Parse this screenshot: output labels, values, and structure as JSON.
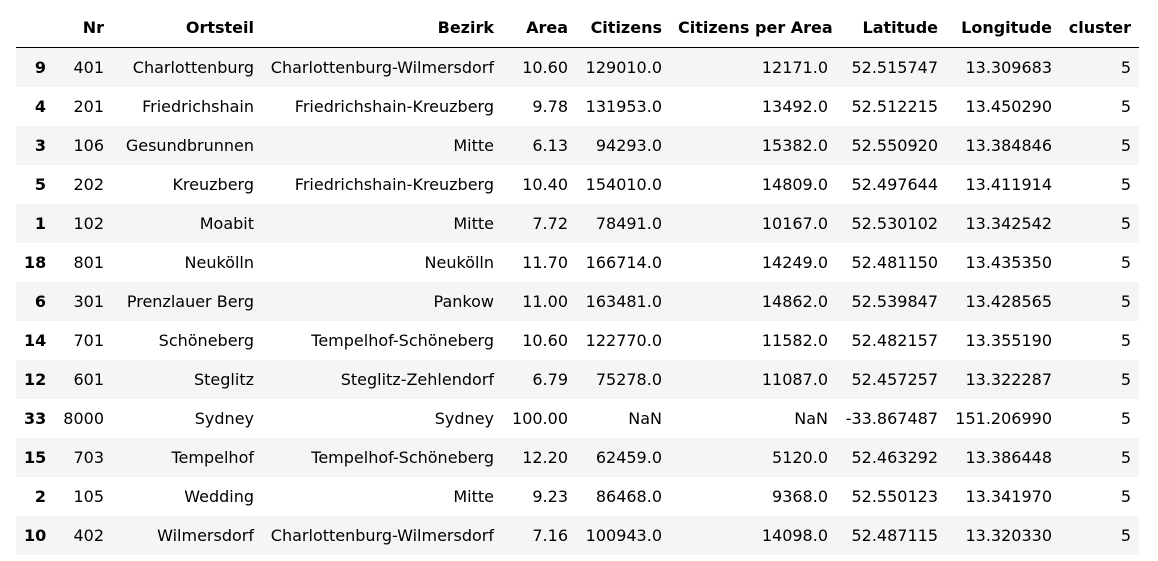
{
  "table": {
    "columns": [
      "",
      "Nr",
      "Ortsteil",
      "Bezirk",
      "Area",
      "Citizens",
      "Citizens per Area",
      "Latitude",
      "Longitude",
      "cluster"
    ],
    "rows": [
      [
        "9",
        "401",
        "Charlottenburg",
        "Charlottenburg-Wilmersdorf",
        "10.60",
        "129010.0",
        "12171.0",
        "52.515747",
        "13.309683",
        "5"
      ],
      [
        "4",
        "201",
        "Friedrichshain",
        "Friedrichshain-Kreuzberg",
        "9.78",
        "131953.0",
        "13492.0",
        "52.512215",
        "13.450290",
        "5"
      ],
      [
        "3",
        "106",
        "Gesundbrunnen",
        "Mitte",
        "6.13",
        "94293.0",
        "15382.0",
        "52.550920",
        "13.384846",
        "5"
      ],
      [
        "5",
        "202",
        "Kreuzberg",
        "Friedrichshain-Kreuzberg",
        "10.40",
        "154010.0",
        "14809.0",
        "52.497644",
        "13.411914",
        "5"
      ],
      [
        "1",
        "102",
        "Moabit",
        "Mitte",
        "7.72",
        "78491.0",
        "10167.0",
        "52.530102",
        "13.342542",
        "5"
      ],
      [
        "18",
        "801",
        "Neukölln",
        "Neukölln",
        "11.70",
        "166714.0",
        "14249.0",
        "52.481150",
        "13.435350",
        "5"
      ],
      [
        "6",
        "301",
        "Prenzlauer Berg",
        "Pankow",
        "11.00",
        "163481.0",
        "14862.0",
        "52.539847",
        "13.428565",
        "5"
      ],
      [
        "14",
        "701",
        "Schöneberg",
        "Tempelhof-Schöneberg",
        "10.60",
        "122770.0",
        "11582.0",
        "52.482157",
        "13.355190",
        "5"
      ],
      [
        "12",
        "601",
        "Steglitz",
        "Steglitz-Zehlendorf",
        "6.79",
        "75278.0",
        "11087.0",
        "52.457257",
        "13.322287",
        "5"
      ],
      [
        "33",
        "8000",
        "Sydney",
        "Sydney",
        "100.00",
        "NaN",
        "NaN",
        "-33.867487",
        "151.206990",
        "5"
      ],
      [
        "15",
        "703",
        "Tempelhof",
        "Tempelhof-Schöneberg",
        "12.20",
        "62459.0",
        "5120.0",
        "52.463292",
        "13.386448",
        "5"
      ],
      [
        "2",
        "105",
        "Wedding",
        "Mitte",
        "9.23",
        "86468.0",
        "9368.0",
        "52.550123",
        "13.341970",
        "5"
      ],
      [
        "10",
        "402",
        "Wilmersdorf",
        "Charlottenburg-Wilmersdorf",
        "7.16",
        "100943.0",
        "14098.0",
        "52.487115",
        "13.320330",
        "5"
      ]
    ]
  }
}
